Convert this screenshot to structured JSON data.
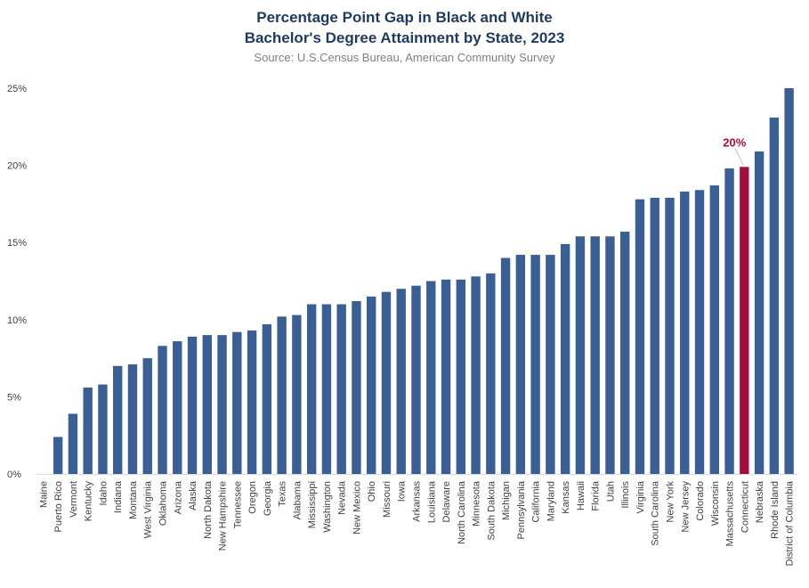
{
  "chart_data": {
    "type": "bar",
    "title_line1": "Percentage Point Gap in Black and White",
    "title_line2": "Bachelor's Degree Attainment by State, 2023",
    "subtitle": "Source: U.S.Census Bureau, American Community Survey",
    "xlabel": "",
    "ylabel": "",
    "ylim": [
      0,
      25
    ],
    "yticks": [
      {
        "value": 0,
        "label": "0%"
      },
      {
        "value": 5,
        "label": "5%"
      },
      {
        "value": 10,
        "label": "10%"
      },
      {
        "value": 15,
        "label": "15%"
      },
      {
        "value": 20,
        "label": "20%"
      },
      {
        "value": 25,
        "label": "25%"
      }
    ],
    "grid": false,
    "bar_color": "#3a5f94",
    "highlight_color": "#a50e3a",
    "highlight_category": "Connecticut",
    "highlight_label": "20%",
    "categories": [
      "Maine",
      "Puerto Rico",
      "Vermont",
      "Kentucky",
      "Idaho",
      "Indiana",
      "Montana",
      "West Virginia",
      "Oklahoma",
      "Arizona",
      "Alaska",
      "North Dakota",
      "New Hampshire",
      "Tennessee",
      "Oregon",
      "Georgia",
      "Texas",
      "Alabama",
      "Mississippi",
      "Washington",
      "Nevada",
      "New Mexico",
      "Ohio",
      "Missouri",
      "Iowa",
      "Arkansas",
      "Louisiana",
      "Delaware",
      "North Carolina",
      "Minnesota",
      "South Dakota",
      "Michigan",
      "Pennsylvania",
      "California",
      "Maryland",
      "Kansas",
      "Hawaii",
      "Florida",
      "Utah",
      "Illinois",
      "Virginia",
      "South Carolina",
      "New York",
      "New Jersey",
      "Colorado",
      "Wisconsin",
      "Massachusetts",
      "Connecticut",
      "Nebraska",
      "Rhode Island",
      "District of Columbia"
    ],
    "values": [
      0,
      2.4,
      3.9,
      5.6,
      5.8,
      7.0,
      7.1,
      7.5,
      8.3,
      8.6,
      8.9,
      9.0,
      9.0,
      9.2,
      9.3,
      9.7,
      10.2,
      10.3,
      11.0,
      11.0,
      11.0,
      11.2,
      11.5,
      11.8,
      12.0,
      12.2,
      12.5,
      12.6,
      12.6,
      12.8,
      13.0,
      14.0,
      14.2,
      14.2,
      14.2,
      14.9,
      15.4,
      15.4,
      15.4,
      15.7,
      17.8,
      17.9,
      17.9,
      18.3,
      18.4,
      18.7,
      19.8,
      19.9,
      20.9,
      23.1,
      25.0
    ]
  }
}
